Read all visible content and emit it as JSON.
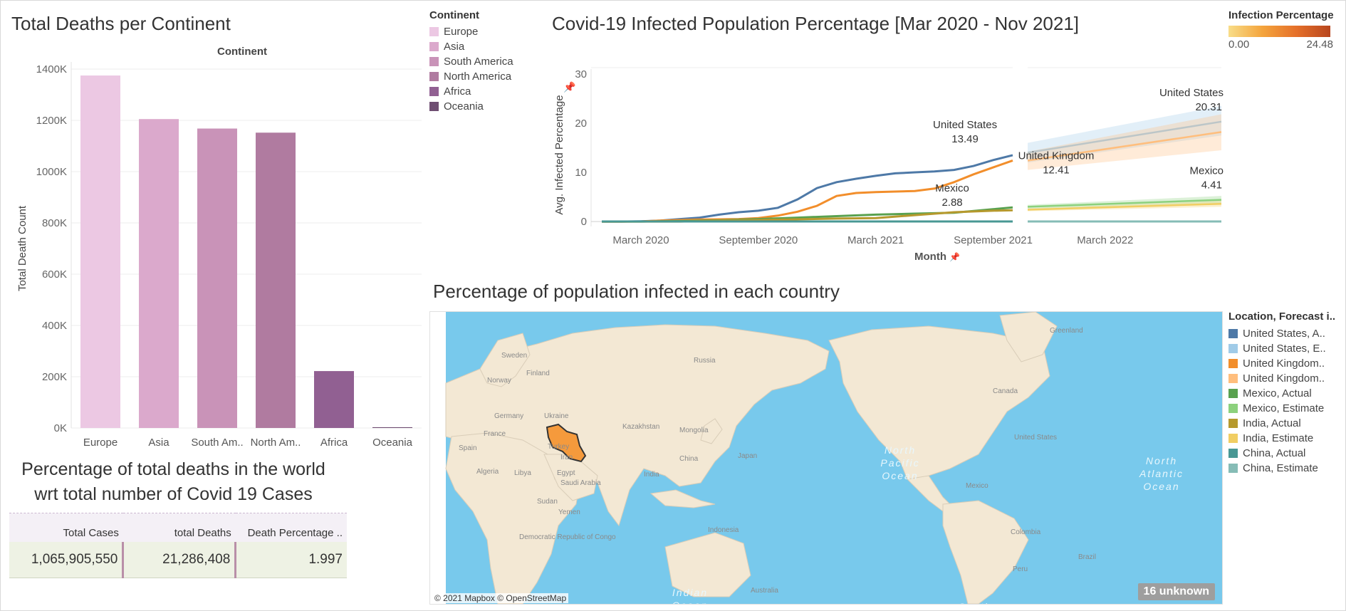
{
  "deaths_chart": {
    "title": "Total Deaths per Continent",
    "header": "Continent",
    "ylabel": "Total Death Count"
  },
  "continent_legend": {
    "title": "Continent",
    "items": [
      {
        "label": "Europe",
        "color": "#ecc8e3"
      },
      {
        "label": "Asia",
        "color": "#dba9cc"
      },
      {
        "label": "South America",
        "color": "#c993b8"
      },
      {
        "label": "North America",
        "color": "#b07ba0"
      },
      {
        "label": "Africa",
        "color": "#916092"
      },
      {
        "label": "Oceania",
        "color": "#6f4e72"
      }
    ]
  },
  "line_chart": {
    "title": "Covid-19 Infected Population Percentage [Mar 2020 - Nov 2021]",
    "ylabel": "Avg. Infected Percentage",
    "xlabel": "Month"
  },
  "infection_legend": {
    "title": "Infection Percentage",
    "min": "0.00",
    "max": "24.48"
  },
  "map": {
    "title": "Percentage of population infected in each country",
    "attribution": "© 2021 Mapbox © OpenStreetMap",
    "unknown_badge": "16 unknown",
    "labels": [
      "Russia",
      "Sweden",
      "Finland",
      "Norway",
      "Germany",
      "Ukraine",
      "France",
      "Spain",
      "Kazakhstan",
      "Mongolia",
      "Turkey",
      "Iran",
      "Algeria",
      "Libya",
      "Egypt",
      "Saudi Arabia",
      "Sudan",
      "Yemen",
      "India",
      "China",
      "Japan",
      "Indonesia",
      "Democratic Republic of Congo",
      "Australia",
      "Canada",
      "United States",
      "Mexico",
      "Colombia",
      "Peru",
      "Brazil",
      "Greenland",
      "Indian Ocean",
      "North Pacific Ocean",
      "North Atlantic Ocean",
      "South"
    ]
  },
  "forecast_legend": {
    "title": "Location, Forecast i..",
    "items": [
      {
        "label": "United States, A..",
        "color": "#4e79a7"
      },
      {
        "label": "United States, E..",
        "color": "#a0cbe8"
      },
      {
        "label": "United Kingdom..",
        "color": "#f28e2b"
      },
      {
        "label": "United Kingdom..",
        "color": "#ffbe7d"
      },
      {
        "label": "Mexico, Actual",
        "color": "#59a14f"
      },
      {
        "label": "Mexico, Estimate",
        "color": "#8cd17d"
      },
      {
        "label": "India, Actual",
        "color": "#b6992d"
      },
      {
        "label": "India, Estimate",
        "color": "#f1ce63"
      },
      {
        "label": "China, Actual",
        "color": "#499894"
      },
      {
        "label": "China, Estimate",
        "color": "#86bcb6"
      }
    ]
  },
  "death_table": {
    "title_line1": "Percentage of total deaths in the world",
    "title_line2": "wrt total number of Covid 19 Cases",
    "headers": [
      "Total Cases",
      "total Deaths",
      "Death Percentage .."
    ],
    "values": [
      "1,065,905,550",
      "21,286,408",
      "1.997"
    ]
  },
  "chart_data": [
    {
      "type": "bar",
      "title": "Total Deaths per Continent",
      "header": "Continent",
      "ylabel": "Total Death Count",
      "categories": [
        "Europe",
        "Asia",
        "South Am..",
        "North Am..",
        "Africa",
        "Oceania"
      ],
      "values": [
        1375000,
        1205000,
        1168000,
        1152000,
        222000,
        3000
      ],
      "colors": [
        "#ecc8e3",
        "#dba9cc",
        "#c993b8",
        "#b07ba0",
        "#916092",
        "#6f4e72"
      ],
      "yticks": [
        0,
        200000,
        400000,
        600000,
        800000,
        1000000,
        1200000,
        1400000
      ],
      "ytick_labels": [
        "0K",
        "200K",
        "400K",
        "600K",
        "800K",
        "1000K",
        "1200K",
        "1400K"
      ],
      "ylim": [
        0,
        1400000
      ],
      "grid": true
    },
    {
      "type": "line",
      "title": "Covid-19 Infected Population Percentage [Mar 2020 - Nov 2021]",
      "ylabel": "Avg. Infected Percentage",
      "xlabel": "Month",
      "xlim": [
        "2020-01",
        "2022-09"
      ],
      "ylim": [
        -1,
        31
      ],
      "yticks": [
        0,
        10,
        20,
        30
      ],
      "xticks": [
        "2020-03",
        "2020-09",
        "2021-03",
        "2021-09",
        "2022-03"
      ],
      "xtick_labels": [
        "March 2020",
        "September 2020",
        "March 2021",
        "September 2021",
        "March 2022"
      ],
      "gap_between": [
        "2021-10",
        "2021-11"
      ],
      "series": [
        {
          "name": "United States, Actual",
          "color": "#4e79a7",
          "x": [
            "2020-01",
            "2020-02",
            "2020-03",
            "2020-04",
            "2020-05",
            "2020-06",
            "2020-07",
            "2020-08",
            "2020-09",
            "2020-10",
            "2020-11",
            "2020-12",
            "2021-01",
            "2021-02",
            "2021-03",
            "2021-04",
            "2021-05",
            "2021-06",
            "2021-07",
            "2021-08",
            "2021-09",
            "2021-10"
          ],
          "y": [
            0,
            0,
            0.05,
            0.2,
            0.5,
            0.8,
            1.4,
            1.9,
            2.2,
            2.8,
            4.5,
            6.8,
            8.0,
            8.7,
            9.3,
            9.8,
            10.0,
            10.2,
            10.5,
            11.3,
            12.5,
            13.49
          ]
        },
        {
          "name": "United Kingdom, Actual",
          "color": "#f28e2b",
          "x": [
            "2020-01",
            "2020-02",
            "2020-03",
            "2020-04",
            "2020-05",
            "2020-06",
            "2020-07",
            "2020-08",
            "2020-09",
            "2020-10",
            "2020-11",
            "2020-12",
            "2021-01",
            "2021-02",
            "2021-03",
            "2021-04",
            "2021-05",
            "2021-06",
            "2021-07",
            "2021-08",
            "2021-09",
            "2021-10"
          ],
          "y": [
            0,
            0,
            0.02,
            0.2,
            0.3,
            0.4,
            0.45,
            0.5,
            0.7,
            1.2,
            2.0,
            3.2,
            5.2,
            5.8,
            6.0,
            6.1,
            6.2,
            6.7,
            8.0,
            9.6,
            11.0,
            12.41
          ]
        },
        {
          "name": "Mexico, Actual",
          "color": "#59a14f",
          "x": [
            "2020-01",
            "2020-03",
            "2020-05",
            "2020-07",
            "2020-09",
            "2020-11",
            "2021-01",
            "2021-03",
            "2021-05",
            "2021-07",
            "2021-09",
            "2021-10"
          ],
          "y": [
            0,
            0,
            0.1,
            0.25,
            0.5,
            0.8,
            1.1,
            1.4,
            1.6,
            1.8,
            2.5,
            2.88
          ]
        },
        {
          "name": "India, Actual",
          "color": "#b6992d",
          "x": [
            "2020-01",
            "2020-05",
            "2020-09",
            "2021-01",
            "2021-03",
            "2021-05",
            "2021-07",
            "2021-09",
            "2021-10"
          ],
          "y": [
            0,
            0,
            0.3,
            0.6,
            0.7,
            1.3,
            1.9,
            2.2,
            2.3
          ]
        },
        {
          "name": "China, Actual",
          "color": "#499894",
          "x": [
            "2020-01",
            "2021-10"
          ],
          "y": [
            0.02,
            0.02
          ]
        },
        {
          "name": "United States, Estimate",
          "color": "#a0cbe8",
          "x": [
            "2021-11",
            "2022-09"
          ],
          "y": [
            14.0,
            20.31
          ],
          "band": [
            [
              12.0,
              16.0
            ],
            [
              17.5,
              23.5
            ]
          ]
        },
        {
          "name": "United Kingdom, Estimate",
          "color": "#ffbe7d",
          "x": [
            "2021-11",
            "2022-09"
          ],
          "y": [
            12.4,
            18.2
          ],
          "band": [
            [
              10.5,
              14.2
            ],
            [
              14.5,
              21.8
            ]
          ]
        },
        {
          "name": "Mexico, Estimate",
          "color": "#8cd17d",
          "x": [
            "2021-11",
            "2022-09"
          ],
          "y": [
            3.0,
            4.41
          ],
          "band": [
            [
              2.6,
              3.4
            ],
            [
              3.6,
              5.2
            ]
          ]
        },
        {
          "name": "India, Estimate",
          "color": "#f1ce63",
          "x": [
            "2021-11",
            "2022-09"
          ],
          "y": [
            2.4,
            3.6
          ],
          "band": [
            [
              2.1,
              2.7
            ],
            [
              3.0,
              4.2
            ]
          ]
        },
        {
          "name": "China, Estimate",
          "color": "#86bcb6",
          "x": [
            "2021-11",
            "2022-09"
          ],
          "y": [
            0.02,
            0.02
          ]
        }
      ],
      "annotations": [
        {
          "text": "United States",
          "value": "13.49"
        },
        {
          "text": "United Kingdom",
          "value": "12.41"
        },
        {
          "text": "Mexico",
          "value": "2.88"
        },
        {
          "text": "United States",
          "value": "20.31"
        },
        {
          "text": "Mexico",
          "value": "4.41"
        }
      ]
    }
  ]
}
